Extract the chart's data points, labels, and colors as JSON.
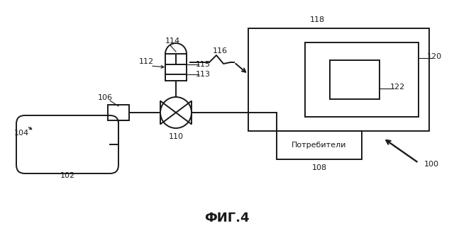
{
  "bg_color": "#ffffff",
  "line_color": "#1a1a1a",
  "title": "ФИГ.4",
  "title_fs": 13
}
